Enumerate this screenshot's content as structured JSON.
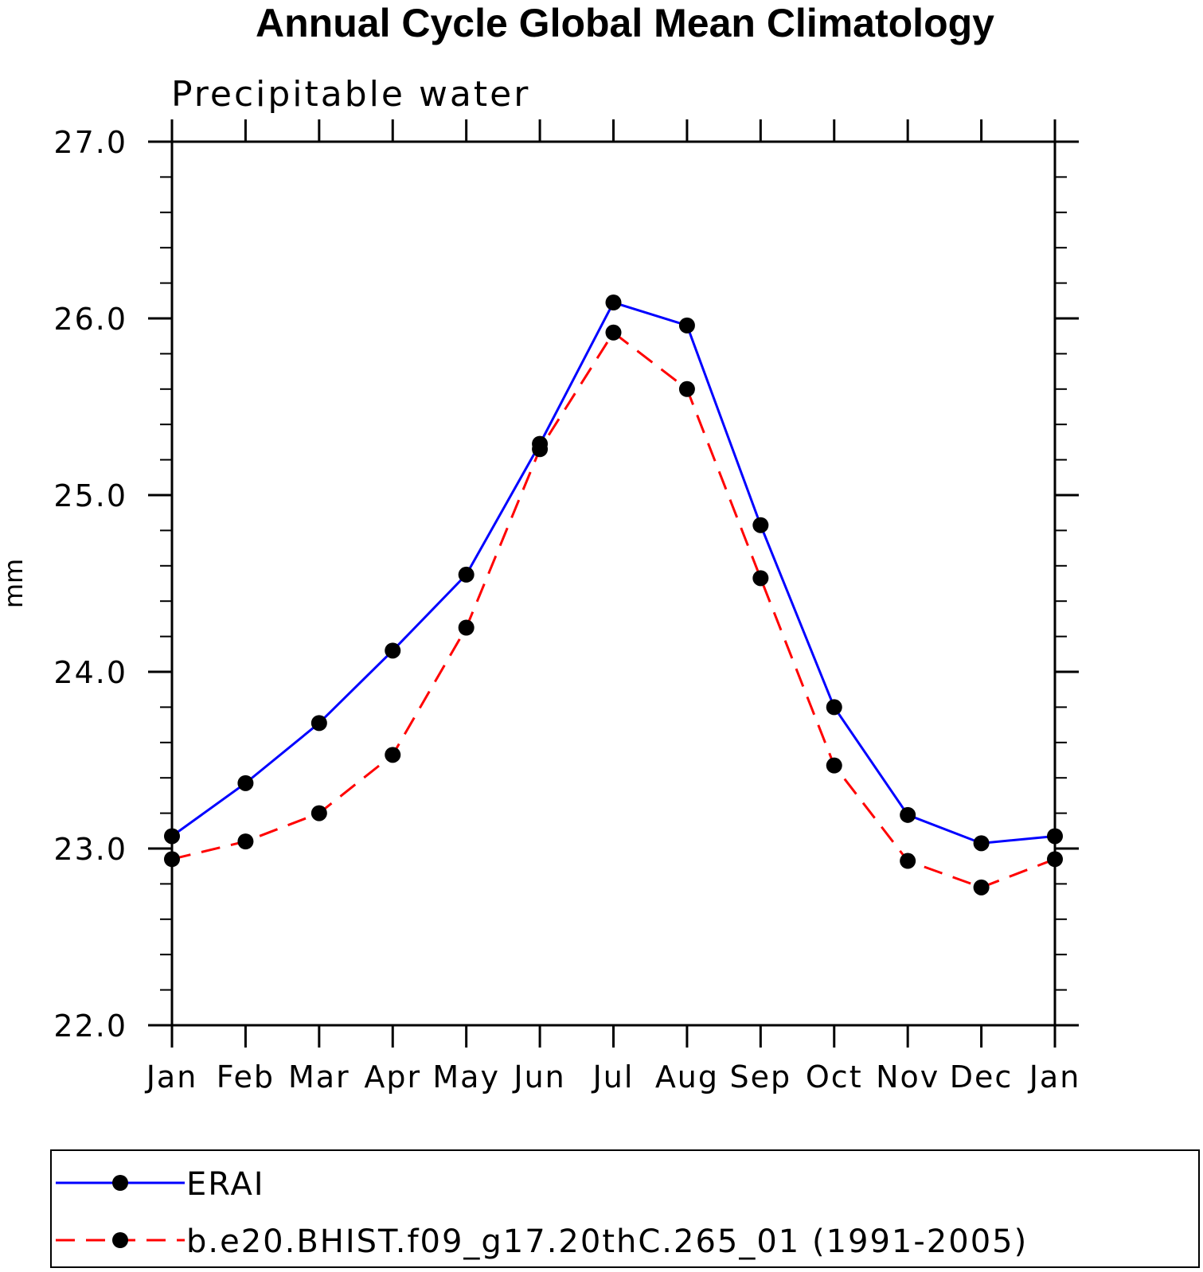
{
  "chart_data": {
    "type": "line",
    "title": "Annual Cycle Global Mean Climatology",
    "subtitle": "Precipitable water",
    "xlabel": "",
    "ylabel": "mm",
    "categories": [
      "Jan",
      "Feb",
      "Mar",
      "Apr",
      "May",
      "Jun",
      "Jul",
      "Aug",
      "Sep",
      "Oct",
      "Nov",
      "Dec",
      "Jan"
    ],
    "ylim": [
      22.0,
      27.0
    ],
    "yticks": [
      "22.0",
      "23.0",
      "24.0",
      "25.0",
      "26.0",
      "27.0"
    ],
    "ytick_values": [
      22.0,
      23.0,
      24.0,
      25.0,
      26.0,
      27.0
    ],
    "y_minor_step": 0.2,
    "grid": false,
    "legend_position": "bottom",
    "series": [
      {
        "name": "ERAI",
        "color": "#0000ff",
        "dash": "solid",
        "marker": "filled-circle",
        "values": [
          23.07,
          23.37,
          23.71,
          24.12,
          24.55,
          25.29,
          26.09,
          25.96,
          24.83,
          23.8,
          23.19,
          23.03,
          23.07
        ]
      },
      {
        "name": "b.e20.BHIST.f09_g17.20thC.265_01 (1991-2005)",
        "color": "#ff0000",
        "dash": "dashed",
        "marker": "filled-circle",
        "values": [
          22.94,
          23.04,
          23.2,
          23.53,
          24.25,
          25.26,
          25.92,
          25.6,
          24.53,
          23.47,
          22.93,
          22.78,
          22.94
        ]
      }
    ]
  }
}
